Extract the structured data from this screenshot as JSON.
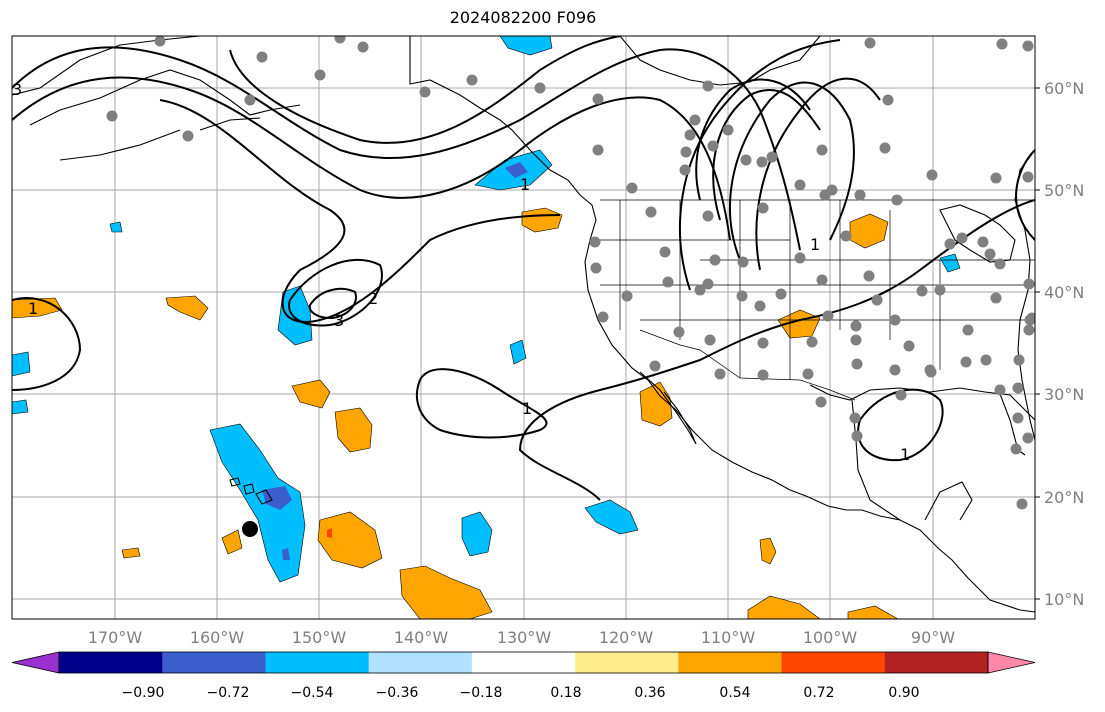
{
  "title": "2024082200 F096",
  "lat_labels": [
    "60°N",
    "50°N",
    "40°N",
    "30°N",
    "20°N",
    "10°N"
  ],
  "lon_labels": [
    "170°W",
    "160°W",
    "150°W",
    "140°W",
    "130°W",
    "120°W",
    "110°W",
    "100°W",
    "90°W"
  ],
  "contour_labels": [
    "3",
    "1",
    "2",
    "3",
    "1",
    "1",
    "1",
    "1"
  ],
  "colorbar": {
    "tick_labels": [
      "−0.90",
      "−0.72",
      "−0.54",
      "−0.36",
      "−0.18",
      "0.18",
      "0.36",
      "0.54",
      "0.72",
      "0.90"
    ],
    "colors": [
      "#9b30d0",
      "#00008b",
      "#3a5fcd",
      "#00bfff",
      "#b0e2ff",
      "#ffffff",
      "#ffec8b",
      "#ffa500",
      "#ff4500",
      "#b22222",
      "#ff88aa"
    ]
  },
  "colors": {
    "grid": "#a9a9a9",
    "coast": "#000000",
    "station": "#808080",
    "marker": "#000000"
  }
}
